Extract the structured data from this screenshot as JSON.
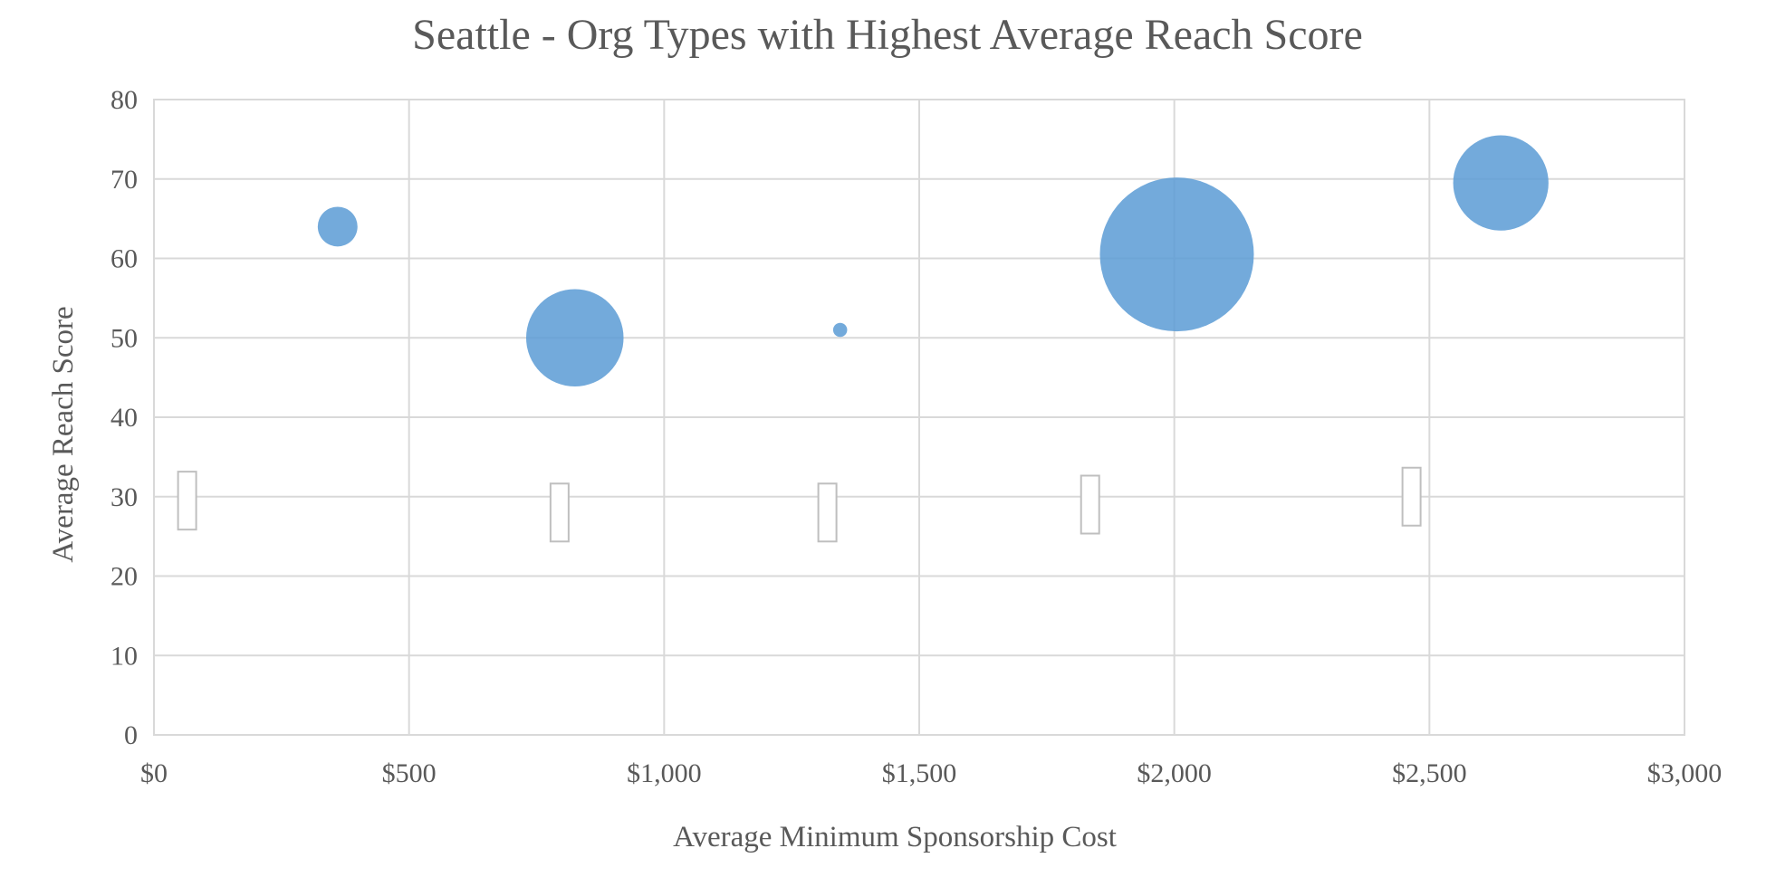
{
  "chart_data": {
    "type": "scatter",
    "subtype": "bubble",
    "title": "Seattle - Org Types with Highest Average Reach Score",
    "xlabel": "Average Minimum Sponsorship Cost",
    "ylabel": "Average Reach Score",
    "xlim": [
      0,
      3000
    ],
    "ylim": [
      0,
      80
    ],
    "x_ticks": [
      "$0",
      "$500",
      "$1,000",
      "$1,500",
      "$2,000",
      "$2,500",
      "$3,000"
    ],
    "y_ticks": [
      "0",
      "10",
      "20",
      "30",
      "40",
      "50",
      "60",
      "70",
      "80"
    ],
    "grid": true,
    "legend": "none",
    "series": [
      {
        "color": "#5b9bd5",
        "points": [
          {
            "x": 360,
            "y": 64,
            "size": 2
          },
          {
            "x": 825,
            "y": 50,
            "size": 12
          },
          {
            "x": 1345,
            "y": 51,
            "size": 0.25
          },
          {
            "x": 2005,
            "y": 60.5,
            "size": 30
          },
          {
            "x": 2640,
            "y": 69.5,
            "size": 11.5
          }
        ]
      }
    ],
    "data_labels": [
      {
        "x": 65,
        "y": 29.5,
        "text": ""
      },
      {
        "x": 795,
        "y": 28,
        "text": ""
      },
      {
        "x": 1320,
        "y": 28,
        "text": ""
      },
      {
        "x": 1835,
        "y": 29,
        "text": ""
      },
      {
        "x": 2465,
        "y": 30,
        "text": ""
      }
    ]
  }
}
